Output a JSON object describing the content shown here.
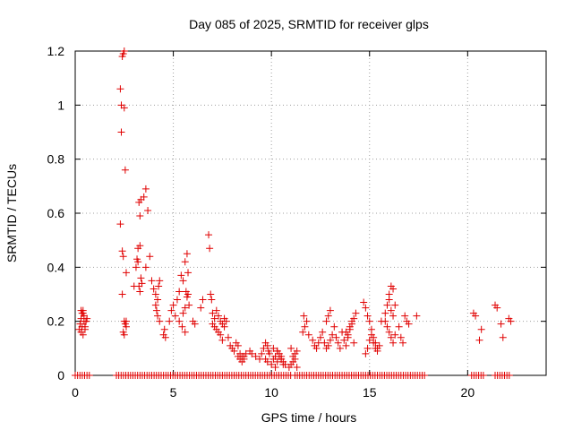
{
  "chart_data": {
    "type": "scatter",
    "title": "Day 085 of 2025, SRMTID for receiver glps",
    "xlabel": "GPS time / hours",
    "ylabel": "SRMTID / TECUs",
    "xlim": [
      0,
      24
    ],
    "ylim": [
      0,
      1.2
    ],
    "xticks": [
      0,
      5,
      10,
      15,
      20
    ],
    "xtick_labels": [
      "0",
      "5",
      "10",
      "15",
      "20"
    ],
    "yticks": [
      0,
      0.2,
      0.4,
      0.6,
      0.8,
      1,
      1.2
    ],
    "ytick_labels": [
      "0",
      "0.2",
      "0.4",
      "0.6",
      "0.8",
      "1",
      "1.2"
    ],
    "grid": true,
    "marker": "+",
    "color": "#e00000",
    "series": [
      {
        "name": "SRMTID",
        "x": [
          0.2,
          0.25,
          0.3,
          0.35,
          0.4,
          0.45,
          0.5,
          0.55,
          0.3,
          0.4,
          0.5,
          0.35,
          0.45,
          0.55,
          0.6,
          0.3,
          0.4,
          2.3,
          2.35,
          2.4,
          2.45,
          2.5,
          2.3,
          2.4,
          2.45,
          2.5,
          2.35,
          2.55,
          2.6,
          2.4,
          2.5,
          2.6,
          2.45,
          2.5,
          2.55,
          2.6,
          3.0,
          3.1,
          3.2,
          3.3,
          3.25,
          3.35,
          3.2,
          3.3,
          3.4,
          3.25,
          3.3,
          3.15,
          3.35,
          3.5,
          3.6,
          3.7,
          3.6,
          3.8,
          3.9,
          4.0,
          4.1,
          4.2,
          4.1,
          4.2,
          4.3,
          4.15,
          4.25,
          4.3,
          4.5,
          4.6,
          4.55,
          4.8,
          4.9,
          5.0,
          5.1,
          5.2,
          5.3,
          5.4,
          5.5,
          5.3,
          5.45,
          5.6,
          5.7,
          5.75,
          5.8,
          5.6,
          5.7,
          5.75,
          5.5,
          5.6,
          5.65,
          6.0,
          6.1,
          6.4,
          6.5,
          6.8,
          6.85,
          6.9,
          6.95,
          7.0,
          7.1,
          7.2,
          7.3,
          7.4,
          7.0,
          7.1,
          7.2,
          7.3,
          7.4,
          7.5,
          7.6,
          7.5,
          7.6,
          7.7,
          7.8,
          7.9,
          8.0,
          8.1,
          8.2,
          8.3,
          8.4,
          8.5,
          8.6,
          8.7,
          8.3,
          8.4,
          8.5,
          8.6,
          8.9,
          9.0,
          9.2,
          9.4,
          9.5,
          9.6,
          9.7,
          9.8,
          9.85,
          9.9,
          9.7,
          9.8,
          10.0,
          10.1,
          10.2,
          10.3,
          10.4,
          10.5,
          10.6,
          10.7,
          10.2,
          10.3,
          10.4,
          10.5,
          10.6,
          10.1,
          10.3,
          10.5,
          10.9,
          11.0,
          11.1,
          11.2,
          11.3,
          11.0,
          11.1,
          11.2,
          11.3,
          11.6,
          11.7,
          11.8,
          11.65,
          11.9,
          12.1,
          12.2,
          12.3,
          12.4,
          12.5,
          12.6,
          12.7,
          12.8,
          12.9,
          13.0,
          13.1,
          13.2,
          12.8,
          12.9,
          13.0,
          13.3,
          13.4,
          13.5,
          13.6,
          13.7,
          13.8,
          13.9,
          14.0,
          14.1,
          14.2,
          13.8,
          13.9,
          14.0,
          14.1,
          14.3,
          14.2,
          14.7,
          14.8,
          14.9,
          15.0,
          15.1,
          15.2,
          15.3,
          15.4,
          14.8,
          14.9,
          15.0,
          15.1,
          15.2,
          15.3,
          15.4,
          15.5,
          15.6,
          15.8,
          15.9,
          16.0,
          16.1,
          16.2,
          15.8,
          15.9,
          16.0,
          16.1,
          16.2,
          16.3,
          16.0,
          16.1,
          16.2,
          16.3,
          16.5,
          16.6,
          16.7,
          16.8,
          16.9,
          17.0,
          17.4,
          20.3,
          20.4,
          20.6,
          20.7,
          21.4,
          21.5,
          21.7,
          21.8,
          22.1,
          22.2
        ],
        "y": [
          0.17,
          0.19,
          0.21,
          0.23,
          0.24,
          0.22,
          0.18,
          0.2,
          0.16,
          0.15,
          0.17,
          0.18,
          0.2,
          0.2,
          0.21,
          0.24,
          0.23,
          1.06,
          1.0,
          1.18,
          1.19,
          1.2,
          0.56,
          0.46,
          0.44,
          0.99,
          0.9,
          0.76,
          0.38,
          0.3,
          0.2,
          0.18,
          0.16,
          0.15,
          0.19,
          0.2,
          0.33,
          0.4,
          0.42,
          0.59,
          0.64,
          0.65,
          0.47,
          0.48,
          0.34,
          0.33,
          0.31,
          0.43,
          0.36,
          0.66,
          0.69,
          0.61,
          0.4,
          0.44,
          0.35,
          0.32,
          0.3,
          0.28,
          0.26,
          0.22,
          0.2,
          0.24,
          0.33,
          0.35,
          0.15,
          0.14,
          0.17,
          0.2,
          0.24,
          0.26,
          0.22,
          0.28,
          0.31,
          0.37,
          0.35,
          0.2,
          0.18,
          0.16,
          0.29,
          0.3,
          0.26,
          0.42,
          0.45,
          0.38,
          0.23,
          0.25,
          0.31,
          0.2,
          0.19,
          0.25,
          0.28,
          0.52,
          0.47,
          0.3,
          0.28,
          0.23,
          0.21,
          0.24,
          0.22,
          0.2,
          0.19,
          0.18,
          0.17,
          0.16,
          0.15,
          0.13,
          0.21,
          0.19,
          0.18,
          0.2,
          0.14,
          0.11,
          0.1,
          0.09,
          0.12,
          0.11,
          0.08,
          0.07,
          0.06,
          0.08,
          0.07,
          0.06,
          0.05,
          0.07,
          0.09,
          0.08,
          0.07,
          0.06,
          0.08,
          0.1,
          0.12,
          0.11,
          0.09,
          0.08,
          0.06,
          0.05,
          0.04,
          0.06,
          0.07,
          0.09,
          0.08,
          0.06,
          0.05,
          0.04,
          0.03,
          0.05,
          0.07,
          0.06,
          0.04,
          0.1,
          0.09,
          0.07,
          0.03,
          0.04,
          0.05,
          0.08,
          0.09,
          0.1,
          0.07,
          0.06,
          0.03,
          0.16,
          0.18,
          0.2,
          0.22,
          0.15,
          0.13,
          0.11,
          0.1,
          0.12,
          0.14,
          0.16,
          0.12,
          0.1,
          0.11,
          0.13,
          0.15,
          0.18,
          0.2,
          0.22,
          0.24,
          0.14,
          0.12,
          0.1,
          0.16,
          0.13,
          0.11,
          0.15,
          0.17,
          0.19,
          0.21,
          0.16,
          0.14,
          0.18,
          0.2,
          0.23,
          0.12,
          0.27,
          0.25,
          0.22,
          0.2,
          0.17,
          0.14,
          0.12,
          0.1,
          0.08,
          0.1,
          0.13,
          0.15,
          0.12,
          0.1,
          0.09,
          0.11,
          0.2,
          0.23,
          0.26,
          0.28,
          0.24,
          0.22,
          0.2,
          0.18,
          0.16,
          0.14,
          0.12,
          0.15,
          0.3,
          0.33,
          0.32,
          0.26,
          0.18,
          0.14,
          0.12,
          0.22,
          0.2,
          0.19,
          0.22,
          0.23,
          0.22,
          0.13,
          0.17,
          0.26,
          0.25,
          0.19,
          0.14,
          0.21,
          0.2
        ]
      }
    ],
    "zero_segments": [
      [
        0.0,
        0.75
      ],
      [
        2.1,
        11.0
      ],
      [
        11.2,
        17.8
      ],
      [
        20.2,
        20.8
      ],
      [
        21.4,
        22.2
      ]
    ]
  }
}
